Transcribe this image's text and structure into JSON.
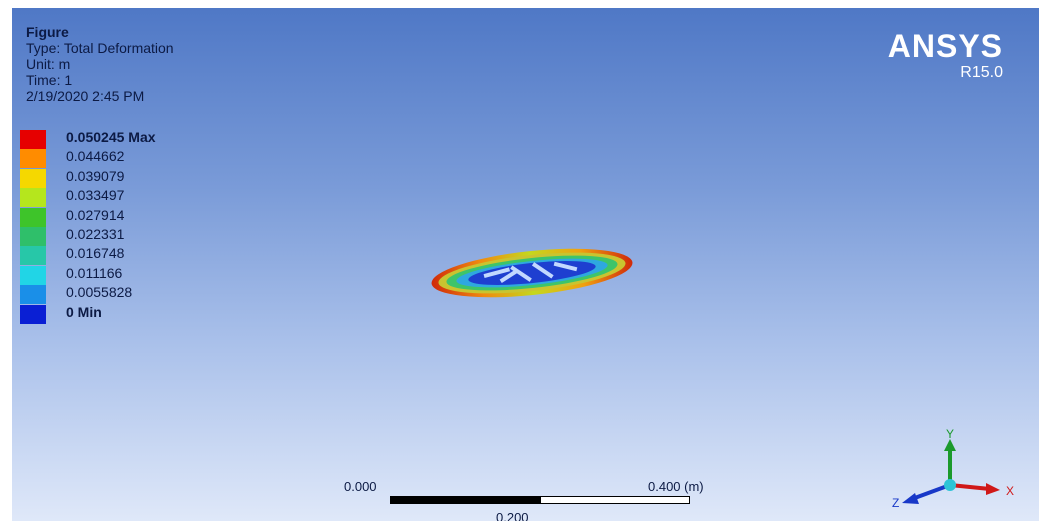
{
  "info": {
    "title": "Figure",
    "type": "Type: Total Deformation",
    "unit": "Unit: m",
    "time": "Time: 1",
    "date": "2/19/2020 2:45 PM"
  },
  "logo": {
    "brand": "ANSYS",
    "version": "R15.0"
  },
  "legend": [
    {
      "label": "0.050245 Max",
      "color": "#e60000",
      "bold": true
    },
    {
      "label": "0.044662",
      "color": "#ff8c00",
      "bold": false
    },
    {
      "label": "0.039079",
      "color": "#f5d800",
      "bold": false
    },
    {
      "label": "0.033497",
      "color": "#b5e61d",
      "bold": false
    },
    {
      "label": "0.027914",
      "color": "#3ec42a",
      "bold": false
    },
    {
      "label": "0.022331",
      "color": "#2fbf6a",
      "bold": false
    },
    {
      "label": "0.016748",
      "color": "#27c7a8",
      "bold": false
    },
    {
      "label": "0.011166",
      "color": "#21d5e6",
      "bold": false
    },
    {
      "label": "0.0055828",
      "color": "#1a8fe8",
      "bold": false
    },
    {
      "label": "0 Min",
      "color": "#0a1fd4",
      "bold": true
    }
  ],
  "scale": {
    "left": "0.000",
    "right": "0.400 (m)",
    "mid": "0.200"
  },
  "triad": {
    "y": "Y",
    "x": "X",
    "z": "Z"
  }
}
